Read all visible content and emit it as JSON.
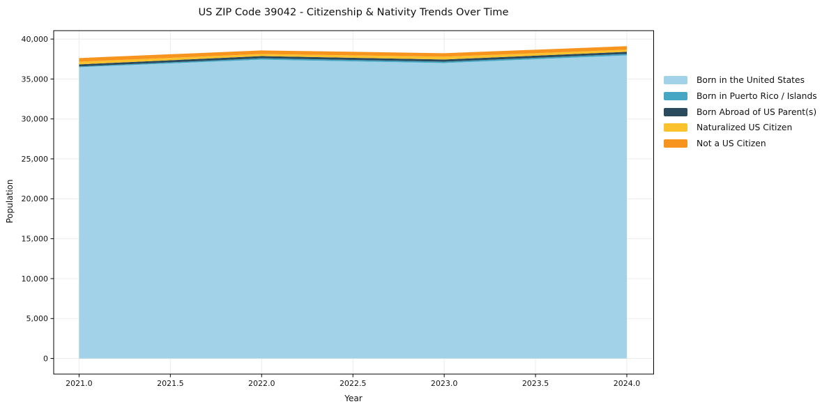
{
  "chart_data": {
    "type": "area",
    "stacked": true,
    "title": "US ZIP Code 39042 - Citizenship & Nativity Trends Over Time",
    "xlabel": "Year",
    "ylabel": "Population",
    "x": [
      2021,
      2022,
      2023,
      2024
    ],
    "series": [
      {
        "name": "Born in the United States",
        "color": "#a2d2e7",
        "values": [
          36480,
          37420,
          37000,
          37960
        ]
      },
      {
        "name": "Born in Puerto Rico / Islands",
        "color": "#45a7c3",
        "values": [
          90,
          180,
          170,
          180
        ]
      },
      {
        "name": "Born Abroad of US Parent(s)",
        "color": "#2a4a5e",
        "values": [
          260,
          270,
          270,
          270
        ]
      },
      {
        "name": "Naturalized US Citizen",
        "color": "#fcc22d",
        "values": [
          340,
          260,
          350,
          260
        ]
      },
      {
        "name": "Not a US Citizen",
        "color": "#f7941e",
        "values": [
          450,
          450,
          440,
          440
        ]
      }
    ],
    "xlim": [
      2020.861,
      2024.147
    ],
    "ylim": [
      -1955,
      41055
    ],
    "xtick_values": [
      2021.0,
      2021.5,
      2022.0,
      2022.5,
      2023.0,
      2023.5,
      2024.0
    ],
    "xtick_labels": [
      "2021.0",
      "2021.5",
      "2022.0",
      "2022.5",
      "2023.0",
      "2023.5",
      "2024.0"
    ],
    "ytick_values": [
      0,
      5000,
      10000,
      15000,
      20000,
      25000,
      30000,
      35000,
      40000
    ],
    "ytick_labels": [
      "0",
      "5,000",
      "10,000",
      "15,000",
      "20,000",
      "25,000",
      "30,000",
      "35,000",
      "40,000"
    ],
    "grid": true,
    "grid_color": "#ebebeb",
    "spine_color": "#000000",
    "text_color": "#111111",
    "legend": {
      "position": "right",
      "frame": false
    }
  }
}
